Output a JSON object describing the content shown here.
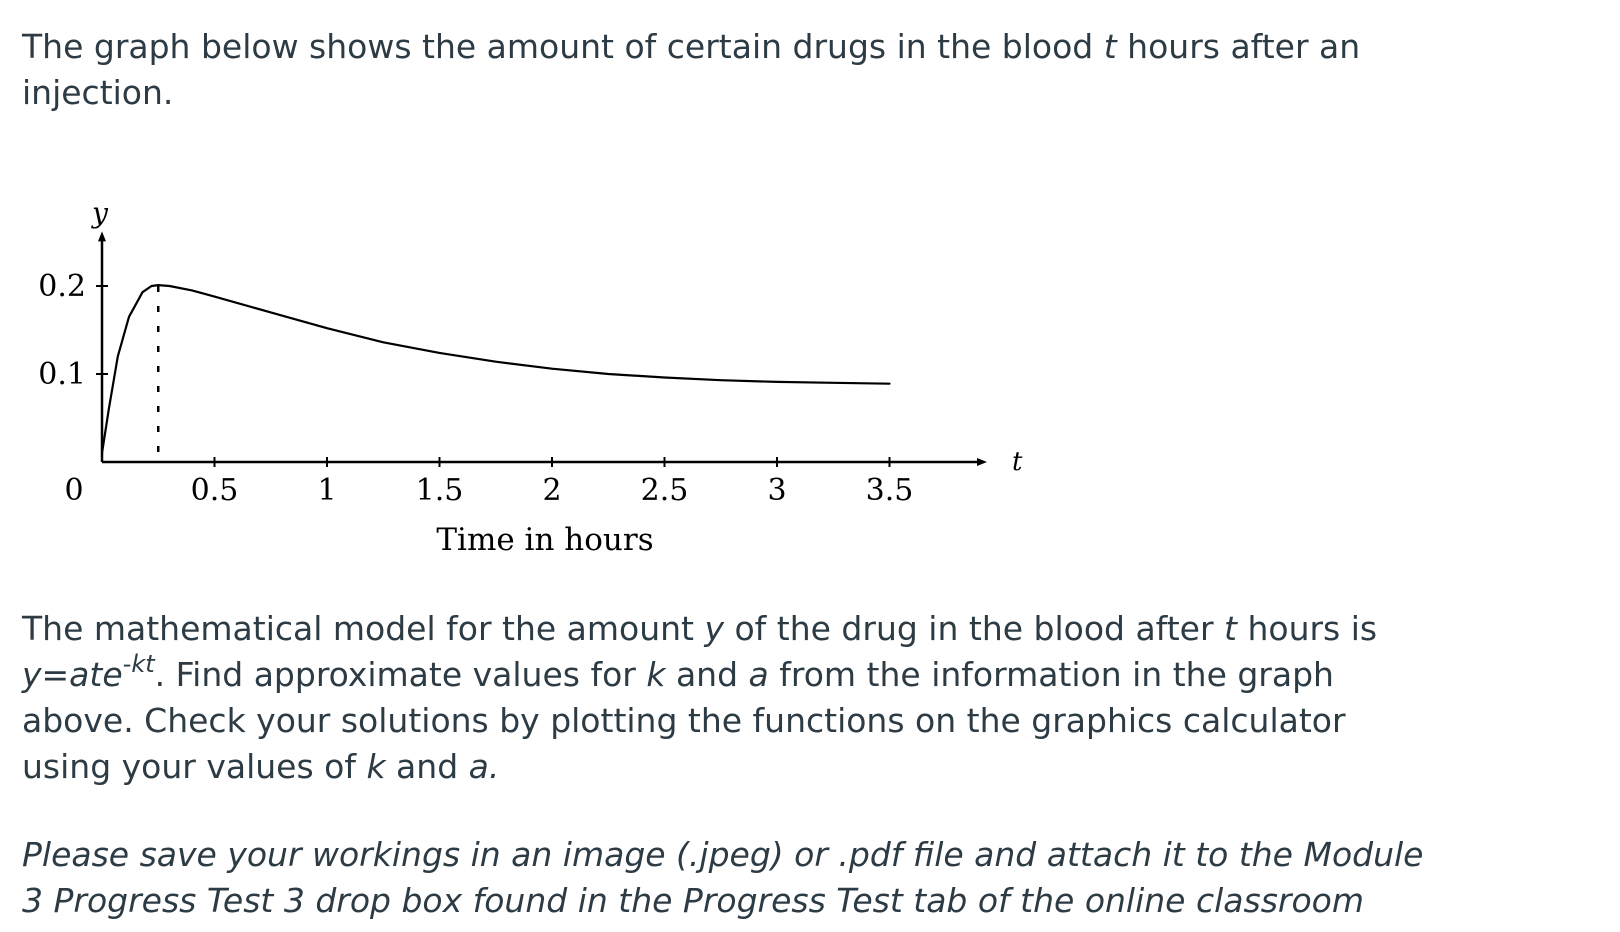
{
  "intro": {
    "part1": "The graph below shows the amount of certain drugs in the blood ",
    "var_t": "t",
    "part2": " hours after an injection."
  },
  "chart_data": {
    "type": "line",
    "xlabel": "Time in hours",
    "x_axis_symbol": "t",
    "y_axis_symbol": "y",
    "origin_label": "0",
    "x_ticks": [
      "0.5",
      "1",
      "1.5",
      "2",
      "2.5",
      "3",
      "3.5"
    ],
    "y_ticks": [
      "0.1",
      "0.2"
    ],
    "xlim": [
      0,
      4
    ],
    "ylim": [
      0,
      0.27
    ],
    "peak_marker": {
      "x": 0.25,
      "y": 0.2
    },
    "series": [
      {
        "x": [
          0,
          0.03,
          0.07,
          0.12,
          0.18,
          0.22,
          0.25,
          0.3,
          0.4,
          0.5,
          0.75,
          1.0,
          1.25,
          1.5,
          1.75,
          2.0,
          2.25,
          2.5,
          2.75,
          3.0,
          3.25,
          3.5
        ],
        "y": [
          0.01,
          0.06,
          0.12,
          0.165,
          0.193,
          0.2,
          0.201,
          0.2,
          0.195,
          0.188,
          0.17,
          0.152,
          0.136,
          0.124,
          0.114,
          0.106,
          0.1,
          0.096,
          0.093,
          0.091,
          0.09,
          0.089
        ]
      }
    ]
  },
  "model": {
    "p1": "The mathematical model for the amount ",
    "y": "y",
    "p2": " of the drug in the blood after ",
    "t": "t",
    "p3": " hours is ",
    "formula": "y=ate",
    "exponent": "-kt",
    "p4": ". Find approximate values for ",
    "k": "k",
    "p5": " and ",
    "a": "a",
    "p6": " from the information in the graph above. Check your solutions by plotting the functions on the graphics calculator using your values of ",
    "k2": "k",
    "p7": " and ",
    "a2": "a."
  },
  "save_note": {
    "line1": "Please save your workings in an image (.jpeg) or .pdf file and attach it to the Module",
    "line2": "3 Progress Test 3 drop box found in the Progress Test tab of the online classroom"
  }
}
